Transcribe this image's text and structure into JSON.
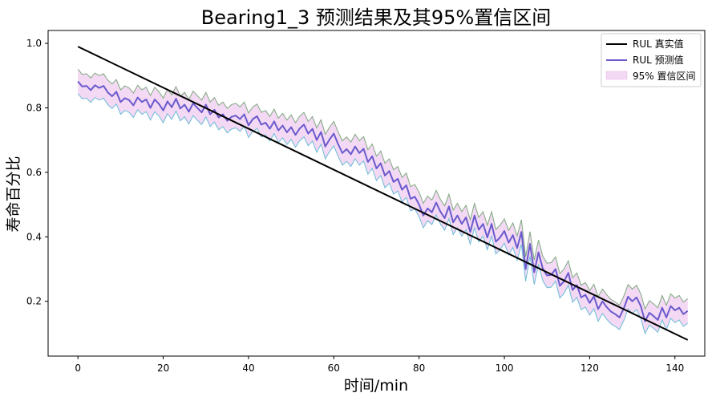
{
  "chart_data": {
    "type": "line",
    "title": "Bearing1_3 预测结果及其95%置信区间",
    "xlabel": "时间/min",
    "ylabel": "寿命百分比",
    "xlim": [
      -7,
      147
    ],
    "ylim": [
      0.03,
      1.04
    ],
    "x_ticks": [
      0,
      20,
      40,
      60,
      80,
      100,
      120,
      140
    ],
    "y_ticks": [
      0.2,
      0.4,
      0.6,
      0.8,
      1.0
    ],
    "x_tick_labels": [
      "0",
      "20",
      "40",
      "60",
      "80",
      "100",
      "120",
      "140"
    ],
    "y_tick_labels": [
      "0.2",
      "0.4",
      "0.6",
      "0.8",
      "1.0"
    ],
    "grid": false,
    "legend_position": "top-right",
    "legend": [
      "RUL 真实值",
      "RUL 预测值",
      "95% 置信区间"
    ],
    "colors": {
      "true": "#000000",
      "pred": "#6a5acd",
      "band_fill": "#f3d9f3",
      "band_upper": "#7fa87f",
      "band_lower": "#6bbcd8"
    },
    "band_offset": {
      "upper": 0.038,
      "lower": 0.038
    },
    "series": [
      {
        "name": "RUL 真实值",
        "x": [
          0,
          143
        ],
        "values": [
          0.99,
          0.08
        ]
      },
      {
        "name": "RUL 预测值",
        "x": [
          0,
          1,
          2,
          3,
          4,
          5,
          6,
          7,
          8,
          9,
          10,
          11,
          12,
          13,
          14,
          15,
          16,
          17,
          18,
          19,
          20,
          21,
          22,
          23,
          24,
          25,
          26,
          27,
          28,
          29,
          30,
          31,
          32,
          33,
          34,
          35,
          36,
          37,
          38,
          39,
          40,
          41,
          42,
          43,
          44,
          45,
          46,
          47,
          48,
          49,
          50,
          51,
          52,
          53,
          54,
          55,
          56,
          57,
          58,
          59,
          60,
          61,
          62,
          63,
          64,
          65,
          66,
          67,
          68,
          69,
          70,
          71,
          72,
          73,
          74,
          75,
          76,
          77,
          78,
          79,
          80,
          81,
          82,
          83,
          84,
          85,
          86,
          87,
          88,
          89,
          90,
          91,
          92,
          93,
          94,
          95,
          96,
          97,
          98,
          99,
          100,
          101,
          102,
          103,
          104,
          105,
          106,
          107,
          108,
          109,
          110,
          111,
          112,
          113,
          114,
          115,
          116,
          117,
          118,
          119,
          120,
          121,
          122,
          123,
          124,
          125,
          126,
          127,
          128,
          129,
          130,
          131,
          132,
          133,
          134,
          135,
          136,
          137,
          138,
          139,
          140,
          141,
          142,
          143
        ],
        "values": [
          0.882,
          0.866,
          0.868,
          0.855,
          0.87,
          0.862,
          0.868,
          0.848,
          0.836,
          0.85,
          0.818,
          0.83,
          0.824,
          0.808,
          0.832,
          0.818,
          0.826,
          0.8,
          0.826,
          0.812,
          0.792,
          0.82,
          0.802,
          0.828,
          0.798,
          0.81,
          0.788,
          0.814,
          0.8,
          0.786,
          0.81,
          0.78,
          0.794,
          0.77,
          0.78,
          0.76,
          0.772,
          0.776,
          0.765,
          0.78,
          0.746,
          0.765,
          0.774,
          0.748,
          0.754,
          0.735,
          0.758,
          0.73,
          0.745,
          0.724,
          0.74,
          0.716,
          0.736,
          0.748,
          0.72,
          0.735,
          0.7,
          0.725,
          0.68,
          0.702,
          0.72,
          0.688,
          0.66,
          0.672,
          0.656,
          0.68,
          0.66,
          0.673,
          0.632,
          0.65,
          0.612,
          0.628,
          0.59,
          0.604,
          0.57,
          0.58,
          0.546,
          0.56,
          0.518,
          0.524,
          0.5,
          0.466,
          0.488,
          0.476,
          0.506,
          0.478,
          0.458,
          0.494,
          0.445,
          0.466,
          0.44,
          0.46,
          0.415,
          0.466,
          0.422,
          0.44,
          0.398,
          0.44,
          0.385,
          0.398,
          0.418,
          0.382,
          0.405,
          0.365,
          0.415,
          0.3,
          0.378,
          0.29,
          0.352,
          0.302,
          0.28,
          0.282,
          0.3,
          0.248,
          0.262,
          0.288,
          0.235,
          0.25,
          0.212,
          0.22,
          0.195,
          0.215,
          0.176,
          0.2,
          0.182,
          0.168,
          0.16,
          0.15,
          0.178,
          0.214,
          0.2,
          0.212,
          0.185,
          0.138,
          0.164,
          0.154,
          0.142,
          0.18,
          0.15,
          0.185,
          0.172,
          0.18,
          0.16,
          0.17
        ]
      },
      {
        "name": "95% 置信区间",
        "values": []
      }
    ]
  }
}
